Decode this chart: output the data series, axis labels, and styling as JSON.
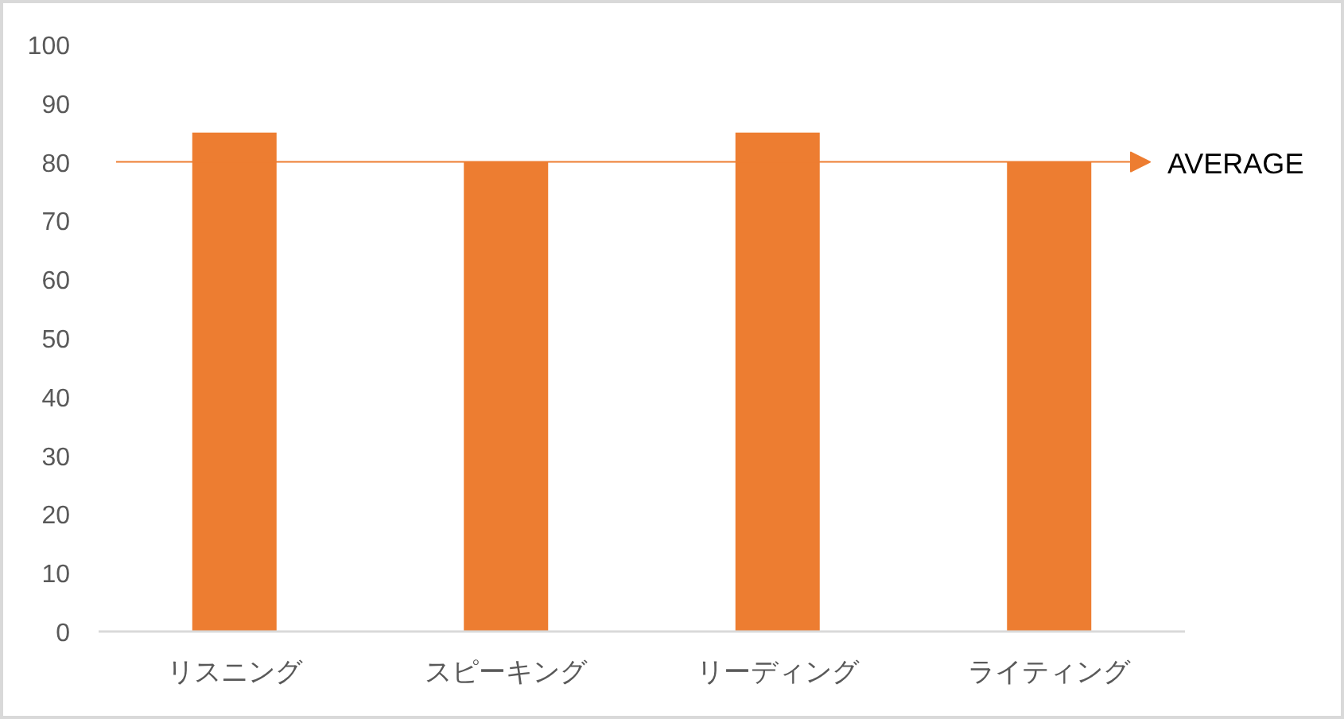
{
  "chart_data": {
    "type": "bar",
    "categories": [
      "リスニング",
      "スピーキング",
      "リーディング",
      "ライティング"
    ],
    "values": [
      85,
      80,
      85,
      80
    ],
    "color": "#ed7d31",
    "ylim": [
      0,
      100
    ],
    "yticks": [
      0,
      10,
      20,
      30,
      40,
      50,
      60,
      70,
      80,
      90,
      100
    ],
    "ref_lines": [
      {
        "axis": "y",
        "value": 80,
        "label": "AVERAGE",
        "color": "#ed7d31"
      }
    ]
  }
}
